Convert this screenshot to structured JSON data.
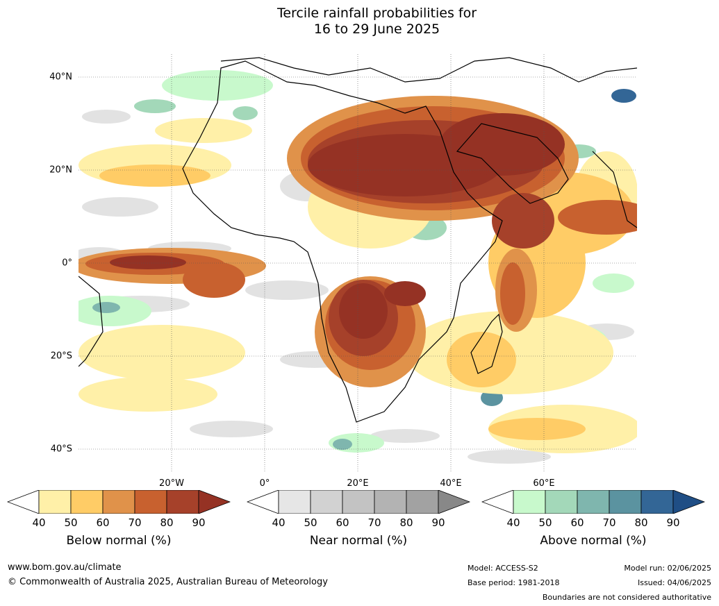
{
  "title": {
    "line1": "Tercile rainfall probabilities for",
    "line2": "16 to 29 June 2025"
  },
  "map": {
    "lat_labels": [
      "40°N",
      "20°N",
      "0°",
      "20°S",
      "40°S"
    ],
    "lon_labels": [
      "20°W",
      "0°",
      "20°E",
      "40°E",
      "60°E"
    ],
    "colors": {
      "below": [
        "#fff0a8",
        "#ffcc66",
        "#e0924a",
        "#c8612f",
        "#a6412a",
        "#953224"
      ],
      "near": [
        "#e6e6e6",
        "#d2d2d2",
        "#c3c3c3",
        "#b3b3b3",
        "#a2a2a2",
        "#888888"
      ],
      "above": [
        "#c8f9cc",
        "#a3d8b9",
        "#7fb6ae",
        "#5b93a0",
        "#336696",
        "#1f4e85"
      ],
      "land_outline": "#000000",
      "borders": "#888888"
    }
  },
  "colorbars": [
    {
      "name": "below",
      "label": "Below normal (%)",
      "ticks": [
        "40",
        "50",
        "60",
        "70",
        "80",
        "90"
      ],
      "colors": [
        "#fff0a8",
        "#ffcc66",
        "#e0924a",
        "#c8612f",
        "#a6412a"
      ],
      "extend": "#953224"
    },
    {
      "name": "near",
      "label": "Near normal (%)",
      "ticks": [
        "40",
        "50",
        "60",
        "70",
        "80",
        "90"
      ],
      "colors": [
        "#e6e6e6",
        "#d2d2d2",
        "#c3c3c3",
        "#b3b3b3",
        "#a2a2a2"
      ],
      "extend": "#888888"
    },
    {
      "name": "above",
      "label": "Above normal (%)",
      "ticks": [
        "40",
        "50",
        "60",
        "70",
        "80",
        "90"
      ],
      "colors": [
        "#c8f9cc",
        "#a3d8b9",
        "#7fb6ae",
        "#5b93a0",
        "#336696"
      ],
      "extend": "#1f4e85"
    }
  ],
  "footer": {
    "website": "www.bom.gov.au/climate",
    "copyright": "© Commonwealth of Australia 2025, Australian Bureau of Meteorology",
    "model": "Model: ACCESS-S2",
    "base_period": "Base period: 1981-2018",
    "model_run": "Model run: 02/06/2025",
    "issued": "Issued: 04/06/2025",
    "disclaimer": "Boundaries are not considered authoritative"
  }
}
